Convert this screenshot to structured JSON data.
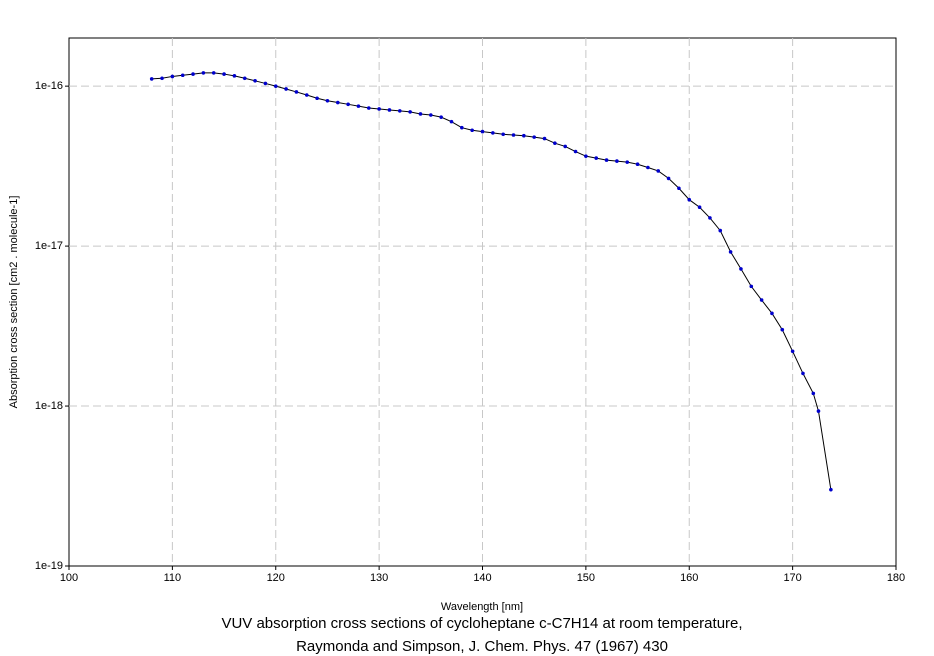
{
  "chart_data": {
    "type": "line",
    "title": "VUV absorption cross sections of cycloheptane c-C7H14 at room temperature,",
    "subtitle": "Raymonda and Simpson, J. Chem. Phys. 47 (1967) 430",
    "x_label": "Wavelength [nm]",
    "y_label": "Absorption cross section [cm2 . molecule-1]",
    "x": [
      108,
      109,
      110,
      111,
      112,
      113,
      114,
      115,
      116,
      117,
      118,
      119,
      120,
      121,
      122,
      123,
      124,
      125,
      126,
      127,
      128,
      129,
      130,
      131,
      132,
      133,
      134,
      135,
      136,
      137,
      138,
      139,
      140,
      141,
      142,
      143,
      144,
      145,
      146,
      147,
      148,
      149,
      150,
      151,
      152,
      153,
      154,
      155,
      156,
      157,
      158,
      159,
      160,
      161,
      162,
      163,
      164,
      165,
      166,
      167,
      168,
      169,
      170,
      171,
      172,
      172.5,
      173.7
    ],
    "series": [
      {
        "name": "cycloheptane",
        "color": "#0000cc",
        "line_color": "#000000",
        "values": [
          1.11e-16,
          1.12e-16,
          1.15e-16,
          1.17e-16,
          1.19e-16,
          1.21e-16,
          1.21e-16,
          1.19e-16,
          1.16e-16,
          1.12e-16,
          1.08e-16,
          1.04e-16,
          1e-16,
          9.6e-17,
          9.2e-17,
          8.8e-17,
          8.4e-17,
          8.1e-17,
          7.9e-17,
          7.7e-17,
          7.5e-17,
          7.3e-17,
          7.2e-17,
          7.1e-17,
          7e-17,
          6.9e-17,
          6.7e-17,
          6.6e-17,
          6.4e-17,
          6e-17,
          5.5e-17,
          5.3e-17,
          5.2e-17,
          5.1e-17,
          5e-17,
          4.95e-17,
          4.9e-17,
          4.8e-17,
          4.7e-17,
          4.4e-17,
          4.2e-17,
          3.9e-17,
          3.65e-17,
          3.55e-17,
          3.45e-17,
          3.4e-17,
          3.35e-17,
          3.25e-17,
          3.1e-17,
          2.95e-17,
          2.65e-17,
          2.3e-17,
          1.95e-17,
          1.75e-17,
          1.5e-17,
          1.25e-17,
          9.2e-18,
          7.2e-18,
          5.6e-18,
          4.6e-18,
          3.8e-18,
          3e-18,
          2.2e-18,
          1.6e-18,
          1.2e-18,
          9.3e-19,
          3e-19
        ]
      }
    ],
    "xlim": [
      100,
      180
    ],
    "xticks": [
      100,
      110,
      120,
      130,
      140,
      150,
      160,
      170,
      180
    ],
    "ylim": [
      1e-19,
      2e-16
    ],
    "yticks": [
      1e-19,
      1e-18,
      1e-17,
      1e-16
    ],
    "y_log": true,
    "grid": true
  }
}
